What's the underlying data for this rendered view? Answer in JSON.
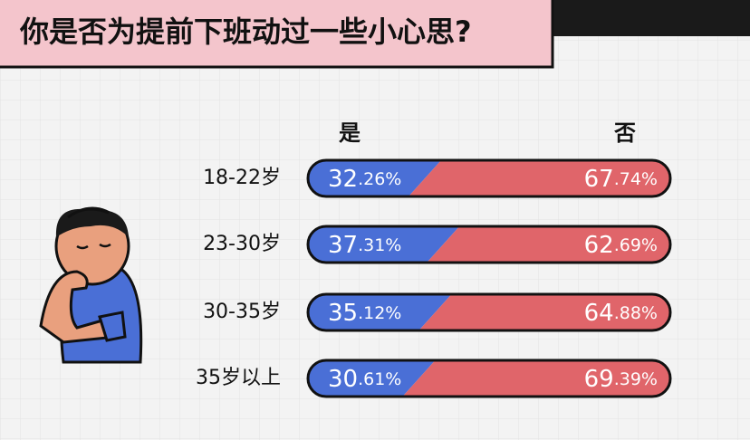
{
  "chart_data": {
    "type": "stacked-bar",
    "title": "你是否为提前下班动过一些小心思?",
    "categories": [
      "18-22岁",
      "23-30岁",
      "30-35岁",
      "35岁以上"
    ],
    "series": [
      {
        "name": "是",
        "color": "#4a6fd6",
        "values": [
          32.26,
          37.31,
          35.12,
          30.61
        ],
        "value_labels": [
          "32.26%",
          "37.31%",
          "35.12%",
          "30.61%"
        ]
      },
      {
        "name": "否",
        "color": "#e0656a",
        "values": [
          67.74,
          62.69,
          64.88,
          69.39
        ],
        "value_labels": [
          "67.74%",
          "62.69%",
          "64.88%",
          "69.39%"
        ]
      }
    ]
  }
}
